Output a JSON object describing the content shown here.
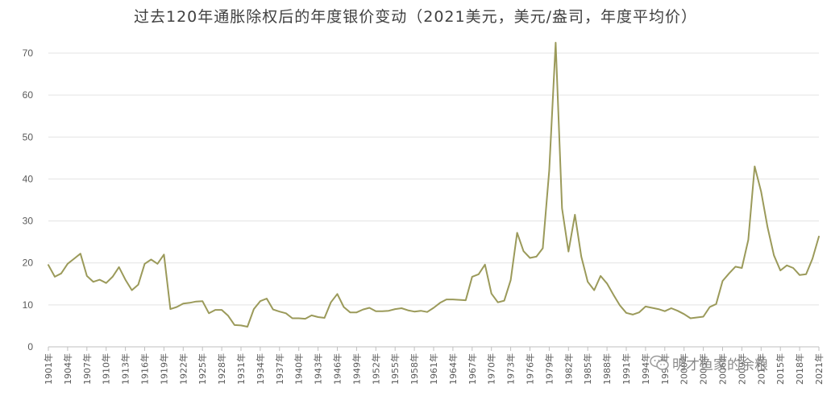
{
  "watermark_text": "明才鱼家的余粮",
  "chart_data": {
    "type": "line",
    "title": "过去120年通胀除权后的年度银价变动（2021美元，美元/盎司，年度平均价）",
    "xlabel": "",
    "ylabel": "",
    "ylim": [
      0,
      70
    ],
    "yticks": [
      0,
      10,
      20,
      30,
      40,
      50,
      60,
      70
    ],
    "grid": true,
    "legend": "none",
    "line_color": "#9b9a5a",
    "grid_color": "#e3e3e3",
    "x_tick_labels": [
      "1901年",
      "1904年",
      "1907年",
      "1910年",
      "1913年",
      "1916年",
      "1919年",
      "1922年",
      "1925年",
      "1928年",
      "1931年",
      "1934年",
      "1937年",
      "1940年",
      "1943年",
      "1946年",
      "1949年",
      "1952年",
      "1955年",
      "1958年",
      "1961年",
      "1964年",
      "1967年",
      "1970年",
      "1973年",
      "1976年",
      "1979年",
      "1982年",
      "1985年",
      "1988年",
      "1991年",
      "1994年",
      "1997年",
      "2000年",
      "2003年",
      "2006年",
      "2009年",
      "2012年",
      "2015年",
      "2018年",
      "2021年"
    ],
    "x": [
      1901,
      1902,
      1903,
      1904,
      1905,
      1906,
      1907,
      1908,
      1909,
      1910,
      1911,
      1912,
      1913,
      1914,
      1915,
      1916,
      1917,
      1918,
      1919,
      1920,
      1921,
      1922,
      1923,
      1924,
      1925,
      1926,
      1927,
      1928,
      1929,
      1930,
      1931,
      1932,
      1933,
      1934,
      1935,
      1936,
      1937,
      1938,
      1939,
      1940,
      1941,
      1942,
      1943,
      1944,
      1945,
      1946,
      1947,
      1948,
      1949,
      1950,
      1951,
      1952,
      1953,
      1954,
      1955,
      1956,
      1957,
      1958,
      1959,
      1960,
      1961,
      1962,
      1963,
      1964,
      1965,
      1966,
      1967,
      1968,
      1969,
      1970,
      1971,
      1972,
      1973,
      1974,
      1975,
      1976,
      1977,
      1978,
      1979,
      1980,
      1981,
      1982,
      1983,
      1984,
      1985,
      1986,
      1987,
      1988,
      1989,
      1990,
      1991,
      1992,
      1993,
      1994,
      1995,
      1996,
      1997,
      1998,
      1999,
      2000,
      2001,
      2002,
      2003,
      2004,
      2005,
      2006,
      2007,
      2008,
      2009,
      2010,
      2011,
      2012,
      2013,
      2014,
      2015,
      2016,
      2017,
      2018,
      2019,
      2020,
      2021
    ],
    "series": [
      {
        "values": [
          19.5,
          16.7,
          17.5,
          19.8,
          21.0,
          22.2,
          16.9,
          15.5,
          16.0,
          15.2,
          16.7,
          19.0,
          16.0,
          13.5,
          14.8,
          19.8,
          20.8,
          19.8,
          22.0,
          9.0,
          9.5,
          10.3,
          10.5,
          10.8,
          10.9,
          8.0,
          8.8,
          8.8,
          7.4,
          5.2,
          5.1,
          4.8,
          9.0,
          10.9,
          11.5,
          8.9,
          8.4,
          8.0,
          6.8,
          6.8,
          6.7,
          7.5,
          7.1,
          6.9,
          10.6,
          12.6,
          9.5,
          8.2,
          8.2,
          8.9,
          9.3,
          8.5,
          8.5,
          8.6,
          9.0,
          9.2,
          8.7,
          8.4,
          8.6,
          8.3,
          9.3,
          10.5,
          11.3,
          11.3,
          11.2,
          11.1,
          16.7,
          17.3,
          19.6,
          12.7,
          10.6,
          11.0,
          15.9,
          27.2,
          22.8,
          21.2,
          21.5,
          23.5,
          42.0,
          72.5,
          33.0,
          22.7,
          31.5,
          21.5,
          15.5,
          13.5,
          16.9,
          15.1,
          12.4,
          9.9,
          8.1,
          7.7,
          8.2,
          9.6,
          9.3,
          9.0,
          8.5,
          9.2,
          8.6,
          7.8,
          6.8,
          7.0,
          7.2,
          9.5,
          10.2,
          15.7,
          17.5,
          19.1,
          18.8,
          25.5,
          43.0,
          37.0,
          28.5,
          21.8,
          18.2,
          19.4,
          18.8,
          17.1,
          17.3,
          21.0,
          26.3
        ]
      }
    ]
  }
}
